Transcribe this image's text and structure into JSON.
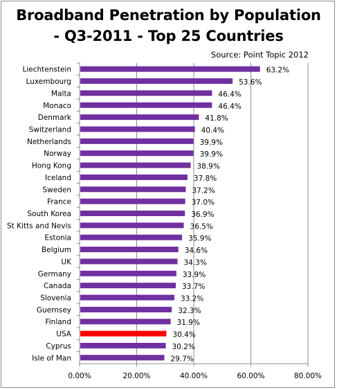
{
  "chart_data": {
    "type": "bar",
    "orientation": "horizontal",
    "title": "Broadband Penetration by Population",
    "subtitle": "- Q3-2011 - Top 25 Countries",
    "source": "Source: Point Topic 2012",
    "categories": [
      "Liechtenstein",
      "Luxembourg",
      "Malta",
      "Monaco",
      "Denmark",
      "Switzerland",
      "Netherlands",
      "Norway",
      "Hong Kong",
      "Iceland",
      "Sweden",
      "France",
      "South Korea",
      "St Kitts and Nevis",
      "Estonia",
      "Belgium",
      "UK",
      "Germany",
      "Canada",
      "Slovenia",
      "Guernsey",
      "Finland",
      "USA",
      "Cyprus",
      "Isle of Man"
    ],
    "values": [
      63.2,
      53.6,
      46.4,
      46.4,
      41.8,
      40.4,
      39.9,
      39.9,
      38.9,
      37.8,
      37.2,
      37.0,
      36.9,
      36.5,
      35.9,
      34.6,
      34.3,
      33.9,
      33.7,
      33.2,
      32.3,
      31.9,
      30.4,
      30.2,
      29.7
    ],
    "value_labels": [
      "63.2%",
      "53.6%",
      "46.4%",
      "46.4%",
      "41.8%",
      "40.4%",
      "39.9%",
      "39.9%",
      "38.9%",
      "37.8%",
      "37.2%",
      "37.0%",
      "36.9%",
      "36.5%",
      "35.9%",
      "34.6%",
      "34.3%",
      "33.9%",
      "33.7%",
      "33.2%",
      "32.3%",
      "31.9%",
      "30.4%",
      "30.2%",
      "29.7%"
    ],
    "xlim": [
      0,
      80
    ],
    "xticks": [
      0,
      20,
      40,
      60,
      80
    ],
    "xtick_labels": [
      "0.00%",
      "20.00%",
      "40.00%",
      "60.00%",
      "80.00%"
    ],
    "grid": "vertical",
    "colors": {
      "default": "#7030a0",
      "highlight": "#ff0000",
      "highlight_category": "USA"
    }
  }
}
